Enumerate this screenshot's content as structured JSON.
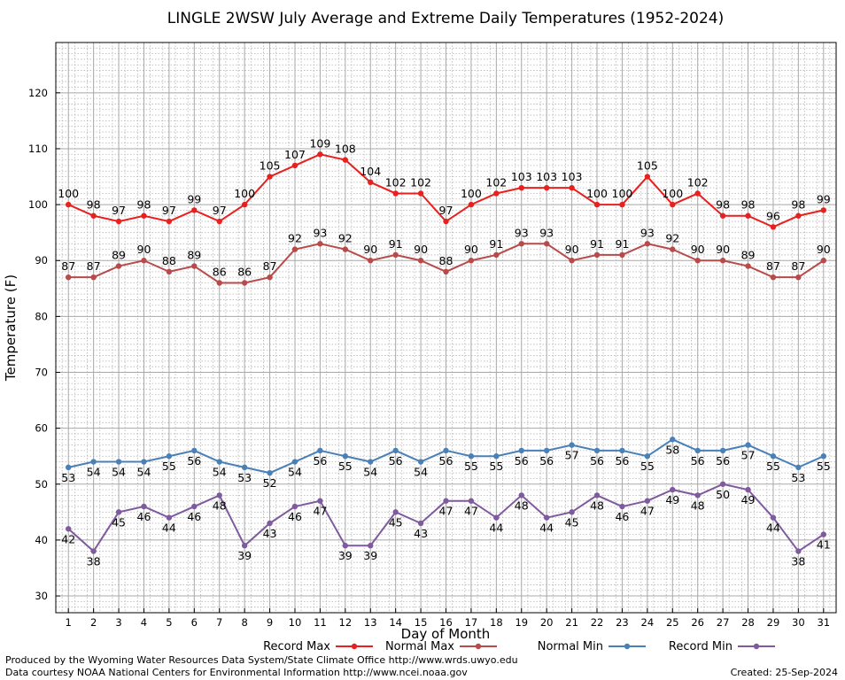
{
  "chart_data": {
    "type": "line",
    "title": "LINGLE 2WSW July Average and Extreme Daily Temperatures (1952-2024)",
    "xlabel": "Day of Month",
    "ylabel": "Temperature (F)",
    "x": [
      1,
      2,
      3,
      4,
      5,
      6,
      7,
      8,
      9,
      10,
      11,
      12,
      13,
      14,
      15,
      16,
      17,
      18,
      19,
      20,
      21,
      22,
      23,
      24,
      25,
      26,
      27,
      28,
      29,
      30,
      31
    ],
    "xlim": [
      0.5,
      31.5
    ],
    "ylim": [
      27,
      129
    ],
    "yticks": [
      30,
      40,
      50,
      60,
      70,
      80,
      90,
      100,
      110,
      120
    ],
    "grid": true,
    "legend_placement": "bottom",
    "series": [
      {
        "name": "Record Max",
        "color": "#e8201e",
        "label_pos": "above",
        "values": [
          100,
          98,
          97,
          98,
          97,
          99,
          97,
          100,
          105,
          107,
          109,
          108,
          104,
          102,
          102,
          97,
          100,
          102,
          103,
          103,
          103,
          100,
          100,
          105,
          100,
          102,
          98,
          98,
          96,
          98,
          99
        ]
      },
      {
        "name": "Normal Max",
        "color": "#b84a4a",
        "label_pos": "above",
        "values": [
          87,
          87,
          89,
          90,
          88,
          89,
          86,
          86,
          87,
          92,
          93,
          92,
          90,
          91,
          90,
          88,
          90,
          91,
          93,
          93,
          90,
          91,
          91,
          93,
          92,
          90,
          90,
          89,
          87,
          87,
          90
        ]
      },
      {
        "name": "Normal Min",
        "color": "#4a80b8",
        "label_pos": "below",
        "values": [
          53,
          54,
          54,
          54,
          55,
          56,
          54,
          53,
          52,
          54,
          56,
          55,
          54,
          56,
          54,
          56,
          55,
          55,
          56,
          56,
          57,
          56,
          56,
          55,
          58,
          56,
          56,
          57,
          55,
          53,
          55
        ]
      },
      {
        "name": "Record Min",
        "color": "#7f5a9e",
        "label_pos": "below",
        "values": [
          42,
          38,
          45,
          46,
          44,
          46,
          48,
          39,
          43,
          46,
          47,
          39,
          39,
          45,
          43,
          47,
          47,
          44,
          48,
          44,
          45,
          48,
          46,
          47,
          49,
          48,
          50,
          49,
          44,
          38,
          41
        ]
      }
    ]
  },
  "footer": {
    "produced_by": "Produced by the Wyoming Water Resources Data System/State Climate Office http://www.wrds.uwyo.edu",
    "courtesy": "Data courtesy NOAA National Centers for Environmental Information http://www.ncei.noaa.gov",
    "created": "Created:  25-Sep-2024"
  }
}
